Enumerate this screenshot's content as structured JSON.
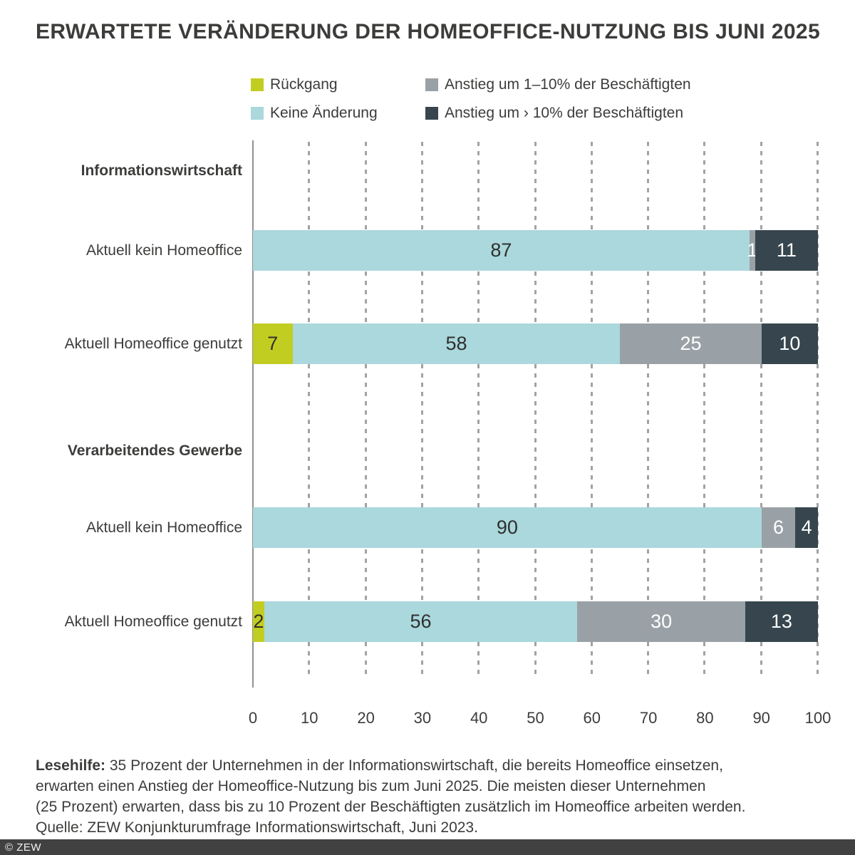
{
  "chart_data": {
    "type": "bar",
    "orientation": "horizontal",
    "stacked": true,
    "title": "ERWARTETE VERÄNDERUNG DER HOMEOFFICE-NUTZUNG BIS JUNI 2025",
    "xlabel": "",
    "ylabel": "",
    "xlim": [
      0,
      100
    ],
    "x_ticks": [
      0,
      10,
      20,
      30,
      40,
      50,
      60,
      70,
      80,
      90,
      100
    ],
    "grid": "dotted-vertical",
    "legend_position": "top",
    "series": [
      {
        "name": "Rückgang",
        "color": "#c2cd21",
        "value_color": "#2f2f2e"
      },
      {
        "name": "Keine Änderung",
        "color": "#aad8dc",
        "value_color": "#2f2f2e"
      },
      {
        "name": "Anstieg um 1–10% der Beschäftigten",
        "color": "#9aa1a6",
        "value_color": "#ffffff"
      },
      {
        "name": "Anstieg um › 10% der Beschäftigten",
        "color": "#37464e",
        "value_color": "#ffffff"
      }
    ],
    "groups": [
      {
        "group": "Informationswirtschaft",
        "rows": [
          {
            "label": "Aktuell kein Homeoffice",
            "values": [
              0,
              87,
              1,
              11
            ]
          },
          {
            "label": "Aktuell Homeoffice genutzt",
            "values": [
              7,
              58,
              25,
              10
            ]
          }
        ]
      },
      {
        "group": "Verarbeitendes Gewerbe",
        "rows": [
          {
            "label": "Aktuell kein Homeoffice",
            "values": [
              0,
              90,
              6,
              4
            ]
          },
          {
            "label": "Aktuell Homeoffice genutzt",
            "values": [
              2,
              56,
              30,
              13
            ]
          }
        ]
      }
    ]
  },
  "lesehilfe": {
    "label": "Lesehilfe:",
    "lines": [
      "35 Prozent der Unternehmen in der Informationswirtschaft, die bereits Homeoffice einsetzen,",
      "erwarten einen Anstieg der Homeoffice-Nutzung bis zum Juni 2025. Die meisten dieser Unternehmen",
      "(25 Prozent) erwarten, dass bis zu 10 Prozent der Beschäftigten zusätzlich im Homeoffice arbeiten werden."
    ],
    "quelle": "Quelle: ZEW Konjunkturumfrage Informationswirtschaft, Juni 2023."
  },
  "footer": {
    "copyright": "© ZEW"
  }
}
